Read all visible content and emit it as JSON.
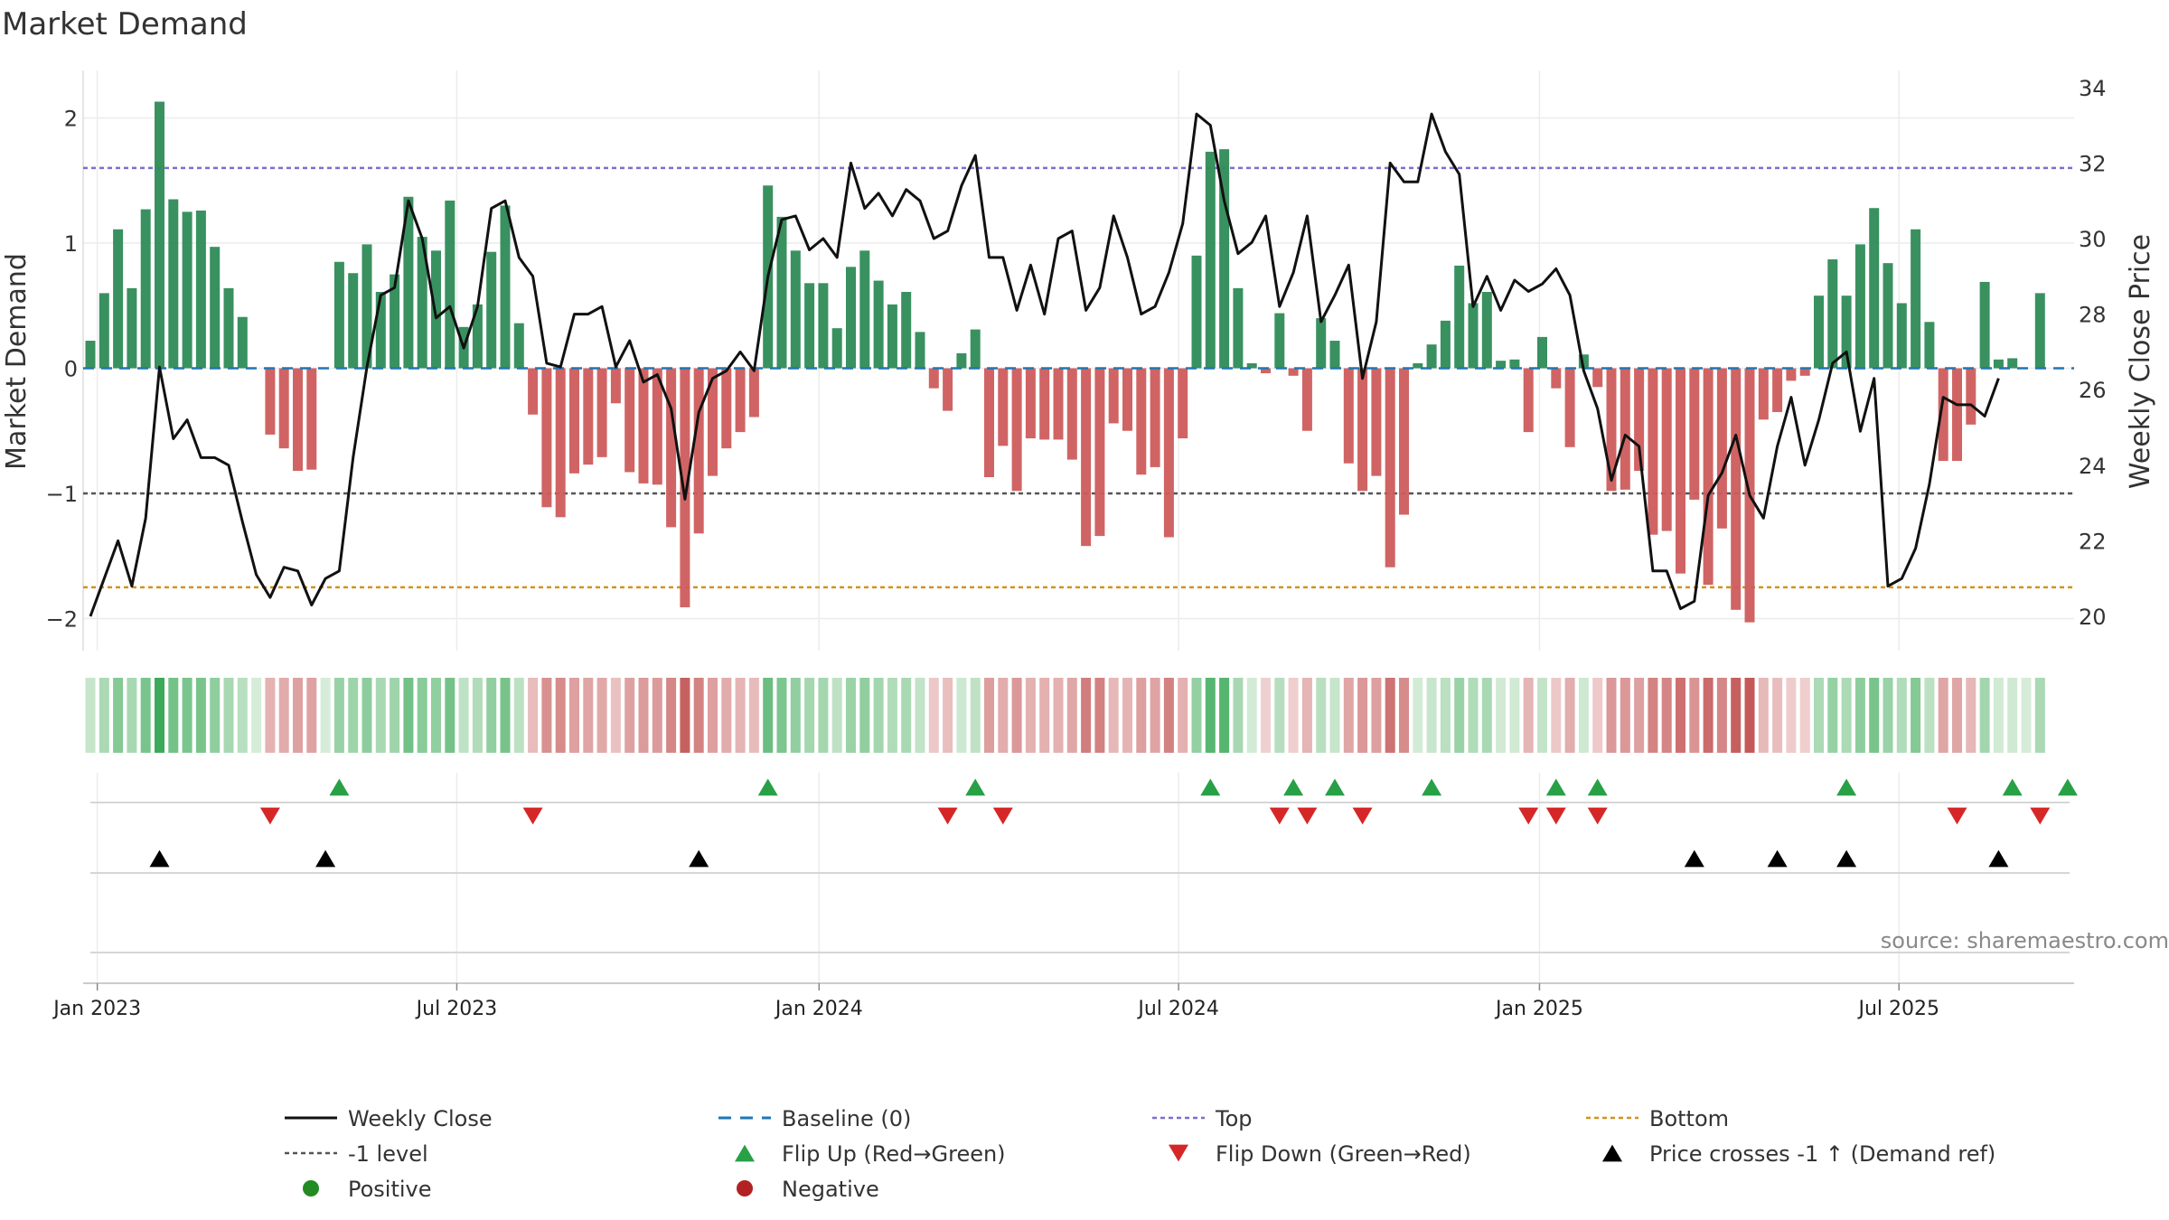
{
  "chart_data": {
    "type": "bar",
    "title": "Market Demand",
    "ylabel": "Market Demand",
    "y2label": "Weekly Close Price",
    "ylim": [
      -2.25,
      2.4
    ],
    "y2lim": [
      19.7,
      34.4
    ],
    "yticks": [
      2,
      1,
      0,
      -1,
      -2
    ],
    "yticklabels": [
      "2",
      "1",
      "0",
      "−1",
      "−2"
    ],
    "y2ticks": [
      20,
      22,
      24,
      26,
      28,
      30,
      32,
      34
    ],
    "x_ticks": [
      {
        "label": "Jan 2023",
        "week": 0.5
      },
      {
        "label": "Jul 2023",
        "week": 26.5
      },
      {
        "label": "Jan 2024",
        "week": 52.7
      },
      {
        "label": "Jul 2024",
        "week": 78.7
      },
      {
        "label": "Jan 2025",
        "week": 104.8
      },
      {
        "label": "Jul 2025",
        "week": 130.8
      }
    ],
    "reference_lines": [
      {
        "name": "Top",
        "value": 1.6,
        "color": "#7a6fd0"
      },
      {
        "name": "-1 level",
        "value": -1.0,
        "color": "#555555"
      },
      {
        "name": "Bottom",
        "value": -1.75,
        "color": "#d4921a"
      }
    ],
    "demand": [
      0.22,
      0.6,
      1.11,
      0.64,
      1.27,
      2.13,
      1.35,
      1.25,
      1.26,
      0.97,
      0.64,
      0.41,
      0.0,
      -0.53,
      -0.64,
      -0.82,
      -0.81,
      0.0,
      0.85,
      0.76,
      0.99,
      0.61,
      0.75,
      1.37,
      1.05,
      0.94,
      1.34,
      0.33,
      0.51,
      0.93,
      1.3,
      0.36,
      -0.37,
      -1.11,
      -1.19,
      -0.84,
      -0.77,
      -0.71,
      -0.28,
      -0.83,
      -0.92,
      -0.93,
      -1.27,
      -1.91,
      -1.32,
      -0.86,
      -0.64,
      -0.51,
      -0.39,
      1.46,
      1.21,
      0.94,
      0.68,
      0.68,
      0.32,
      0.81,
      0.94,
      0.7,
      0.51,
      0.61,
      0.29,
      -0.16,
      -0.34,
      0.12,
      0.31,
      -0.87,
      -0.62,
      -0.98,
      -0.56,
      -0.57,
      -0.57,
      -0.73,
      -1.42,
      -1.34,
      -0.44,
      -0.5,
      -0.85,
      -0.79,
      -1.35,
      -0.56,
      0.9,
      1.73,
      1.75,
      0.64,
      0.04,
      -0.04,
      0.44,
      -0.06,
      -0.5,
      0.4,
      0.22,
      -0.76,
      -0.98,
      -0.86,
      -1.59,
      -1.17,
      0.04,
      0.19,
      0.38,
      0.82,
      0.52,
      0.61,
      0.06,
      0.07,
      -0.51,
      0.25,
      -0.16,
      -0.63,
      0.11,
      -0.15,
      -0.98,
      -0.97,
      -0.82,
      -1.33,
      -1.3,
      -1.64,
      -1.05,
      -1.73,
      -1.28,
      -1.93,
      -2.03,
      -0.41,
      -0.35,
      -0.1,
      -0.06,
      0.58,
      0.87,
      0.58,
      0.99,
      1.28,
      0.84,
      0.52,
      1.11,
      0.37,
      -0.74,
      -0.74,
      -0.45,
      0.69,
      0.07,
      0.08,
      0.0,
      0.6
    ],
    "price": [
      20.0,
      21.0,
      22.0,
      20.8,
      22.6,
      26.6,
      24.7,
      25.2,
      24.2,
      24.2,
      24.0,
      22.5,
      21.1,
      20.5,
      21.3,
      21.2,
      20.3,
      21.0,
      21.2,
      24.2,
      26.6,
      28.5,
      28.7,
      31.0,
      30.0,
      27.9,
      28.2,
      27.1,
      28.2,
      30.8,
      31.0,
      29.5,
      29.0,
      26.7,
      26.6,
      28.0,
      28.0,
      28.2,
      26.6,
      27.3,
      26.2,
      26.4,
      25.5,
      23.1,
      25.4,
      26.3,
      26.5,
      27.0,
      26.5,
      29.0,
      30.5,
      30.6,
      29.7,
      30.0,
      29.5,
      32.0,
      30.8,
      31.2,
      30.6,
      31.3,
      31.0,
      30.0,
      30.2,
      31.4,
      32.2,
      29.5,
      29.5,
      28.1,
      29.3,
      28.0,
      30.0,
      30.2,
      28.1,
      28.7,
      30.6,
      29.5,
      28.0,
      28.2,
      29.1,
      30.4,
      33.3,
      33.0,
      31.0,
      29.6,
      29.9,
      30.6,
      28.2,
      29.1,
      30.6,
      27.8,
      28.5,
      29.3,
      26.3,
      27.8,
      32.0,
      31.5,
      31.5,
      33.3,
      32.3,
      31.7,
      28.2,
      29.0,
      28.1,
      28.9,
      28.6,
      28.8,
      29.2,
      28.5,
      26.5,
      25.5,
      23.6,
      24.8,
      24.5,
      21.2,
      21.2,
      20.2,
      20.4,
      23.2,
      23.8,
      24.8,
      23.2,
      22.6,
      24.5,
      25.8,
      24.0,
      25.2,
      26.7,
      27.0,
      24.9,
      26.3,
      20.8,
      21.0,
      21.8,
      23.5,
      25.8,
      25.6,
      25.6,
      25.3,
      26.3
    ],
    "flip_up_weeks": [
      18,
      49,
      64,
      81,
      87,
      90,
      97,
      106,
      109,
      127,
      139,
      143
    ],
    "flip_down_weeks": [
      13,
      32,
      62,
      66,
      86,
      88,
      92,
      104,
      106,
      109,
      135,
      141
    ],
    "price_cross_weeks": [
      5,
      17,
      44,
      116,
      122,
      127,
      138
    ],
    "legend": [
      [
        "Weekly Close",
        "Baseline (0)",
        "Top",
        "Bottom"
      ],
      [
        "-1 level",
        "Flip Up (Red→Green)",
        "Flip Down (Green→Red)",
        "Price crosses -1 ↑ (Demand ref)"
      ],
      [
        "Positive",
        "Negative"
      ]
    ],
    "source": "source: sharemaestro.com",
    "colors": {
      "positive": "#2e8b57",
      "negative": "#cd5c5c",
      "price": "#111111",
      "baseline": "#1f77b4",
      "flip_up": "#27a046",
      "flip_down": "#d62728",
      "cross": "#000000",
      "positive_dot": "#228b22",
      "negative_dot": "#b22222"
    }
  }
}
